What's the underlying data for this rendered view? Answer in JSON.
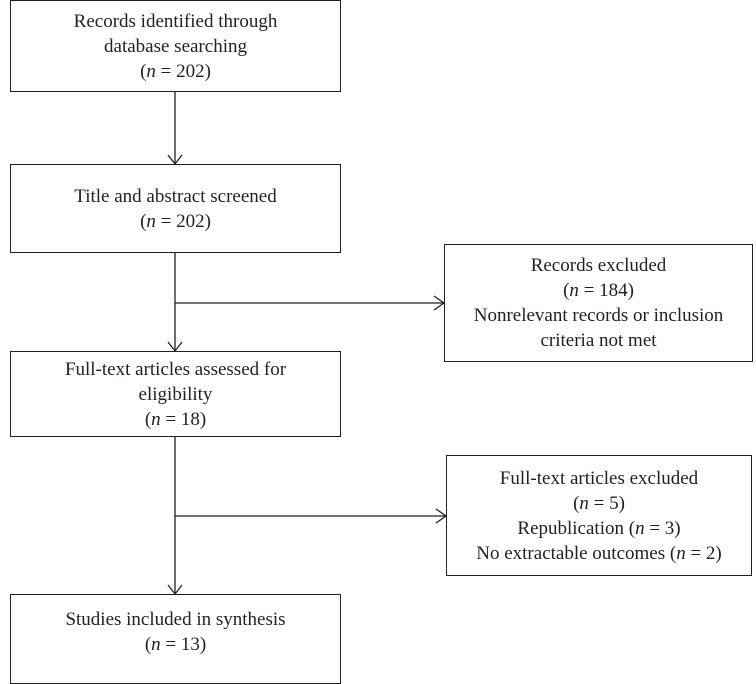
{
  "boxes": {
    "identified": {
      "lines": [
        "Records identified through",
        "database searching"
      ],
      "count_prefix": "(",
      "count_var": "n",
      "count_suffix": " = 202)"
    },
    "screened": {
      "lines": [
        "Title and abstract screened"
      ],
      "count_prefix": "(",
      "count_var": "n",
      "count_suffix": " = 202)"
    },
    "records_excluded": {
      "lines_before": [
        "Records excluded"
      ],
      "count_prefix": "(",
      "count_var": "n",
      "count_suffix": " = 184)",
      "lines_after": [
        "Nonrelevant records or inclusion",
        "criteria not met"
      ]
    },
    "fulltext_assessed": {
      "lines": [
        "Full-text articles assessed for",
        "eligibility"
      ],
      "count_prefix": "(",
      "count_var": "n",
      "count_suffix": " = 18)"
    },
    "fulltext_excluded": {
      "lines_before": [
        "Full-text articles excluded"
      ],
      "count_prefix": "(",
      "count_var": "n",
      "count_suffix": " = 5)",
      "reason1_prefix": "Republication (",
      "reason1_var": "n",
      "reason1_suffix": " = 3)",
      "reason2_prefix": "No extractable outcomes (",
      "reason2_var": "n",
      "reason2_suffix": " = 2)"
    },
    "included": {
      "lines": [
        "Studies included in synthesis"
      ],
      "count_prefix": "(",
      "count_var": "n",
      "count_suffix": " = 13)"
    }
  }
}
